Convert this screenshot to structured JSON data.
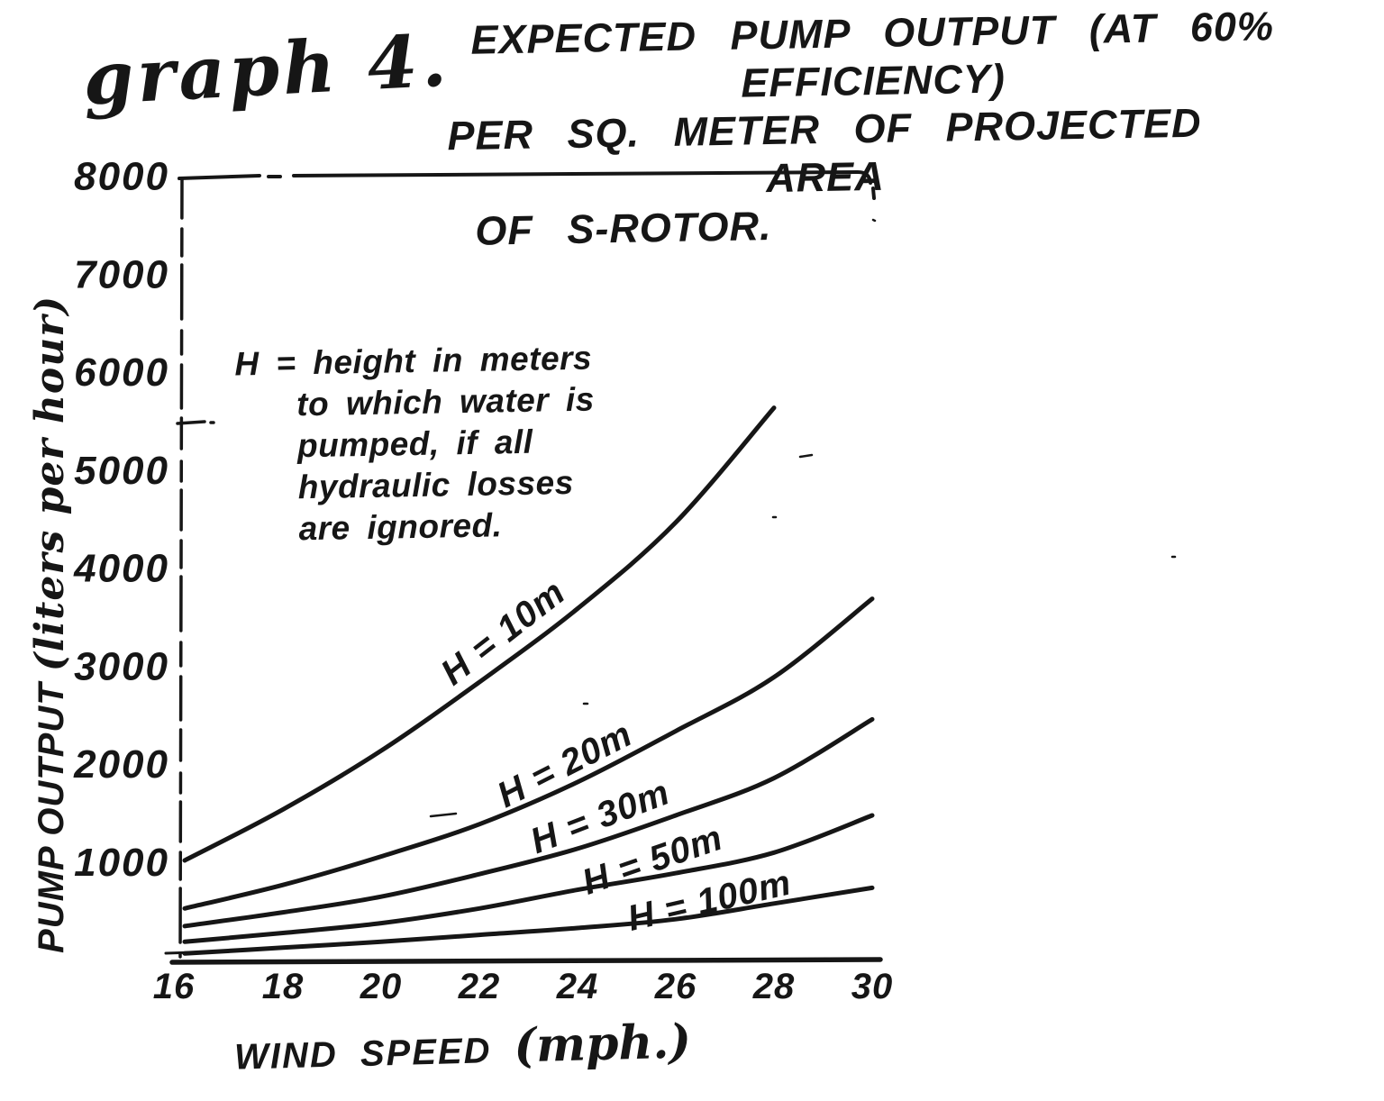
{
  "figure": {
    "label": "graph 4.",
    "title_lines": [
      "EXPECTED PUMP OUTPUT (AT 60% EFFICIENCY)",
      "PER SQ. METER OF PROJECTED AREA",
      "OF S-ROTOR."
    ],
    "y_axis_title_main": "PUMP OUTPUT",
    "y_axis_title_unit": "(liters per hour)",
    "x_axis_title_main": "WIND SPEED",
    "x_axis_title_unit": "(mph.)",
    "annotation_lines": [
      "H = height in meters",
      "to which water is",
      "pumped, if all",
      "hydraulic losses",
      "are ignored."
    ],
    "ink_color": "#161616",
    "paper_color": "#ffffff"
  },
  "chart_data": {
    "type": "line",
    "title": "EXPECTED PUMP OUTPUT (AT 60% EFFICIENCY) PER SQ. METER OF PROJECTED AREA OF S-ROTOR.",
    "xlabel": "WIND SPEED (mph.)",
    "ylabel": "PUMP OUTPUT (liters per hour)",
    "xlim": [
      16,
      30
    ],
    "ylim": [
      0,
      8000
    ],
    "x_ticks": [
      16,
      18,
      20,
      22,
      24,
      26,
      28,
      30
    ],
    "y_ticks": [
      1000,
      2000,
      3000,
      4000,
      5000,
      6000,
      7000,
      8000
    ],
    "grid": false,
    "legend_position": "labels-along-curves",
    "annotation": "H = height in meters to which water is pumped, if all hydraulic losses are ignored.",
    "series": [
      {
        "name": "H = 10m",
        "values": [
          1030,
          1550,
          2150,
          2850,
          3600,
          4480,
          5650,
          null
        ]
      },
      {
        "name": "H = 20m",
        "values": [
          540,
          780,
          1070,
          1400,
          1830,
          2350,
          2900,
          3700
        ]
      },
      {
        "name": "H = 30m",
        "values": [
          360,
          500,
          660,
          890,
          1150,
          1490,
          1870,
          2470
        ]
      },
      {
        "name": "H = 50m",
        "values": [
          200,
          290,
          390,
          540,
          730,
          900,
          1110,
          1490
        ]
      },
      {
        "name": "H = 100m",
        "values": [
          80,
          140,
          200,
          270,
          340,
          430,
          590,
          750
        ]
      }
    ]
  }
}
